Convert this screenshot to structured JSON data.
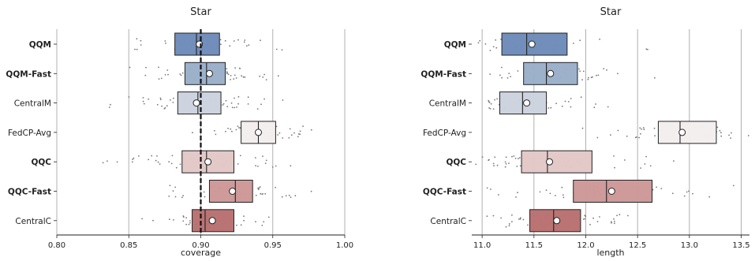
{
  "chart_data": [
    {
      "type": "box",
      "title": "Star",
      "xlabel": "coverage",
      "xlim": [
        0.8,
        1.0
      ],
      "xticks": [
        "0.80",
        "0.85",
        "0.90",
        "0.95",
        "1.00"
      ],
      "xtick_values": [
        0.8,
        0.85,
        0.9,
        0.95,
        1.0
      ],
      "grid": "vertical",
      "reference_line": {
        "value": 0.9,
        "style": "dashed"
      },
      "categories": [
        {
          "label": "QQM",
          "bold": true,
          "q1": 0.882,
          "median": 0.897,
          "q3": 0.913,
          "mean": 0.899,
          "color": "#6d8ab8"
        },
        {
          "label": "QQM-Fast",
          "bold": true,
          "q1": 0.889,
          "median": 0.904,
          "q3": 0.917,
          "mean": 0.906,
          "color": "#9aaec9"
        },
        {
          "label": "CentralM",
          "bold": false,
          "q1": 0.884,
          "median": 0.898,
          "q3": 0.914,
          "mean": 0.897,
          "color": "#cbd3de"
        },
        {
          "label": "FedCP-Avg",
          "bold": false,
          "q1": 0.928,
          "median": 0.94,
          "q3": 0.952,
          "mean": 0.94,
          "color": "#f4eeee"
        },
        {
          "label": "QQC",
          "bold": true,
          "q1": 0.887,
          "median": 0.904,
          "q3": 0.923,
          "mean": 0.905,
          "color": "#e3c7c7"
        },
        {
          "label": "QQC-Fast",
          "bold": true,
          "q1": 0.906,
          "median": 0.924,
          "q3": 0.936,
          "mean": 0.922,
          "color": "#cd9797"
        },
        {
          "label": "CentralC",
          "bold": false,
          "q1": 0.894,
          "median": 0.903,
          "q3": 0.923,
          "mean": 0.908,
          "color": "#b8706f"
        }
      ]
    },
    {
      "type": "box",
      "title": "Star",
      "xlabel": "length",
      "xlim": [
        10.9,
        13.58
      ],
      "xticks": [
        "11.0",
        "11.5",
        "12.0",
        "12.5",
        "13.0",
        "13.5"
      ],
      "xtick_values": [
        11.0,
        11.5,
        12.0,
        12.5,
        13.0,
        13.5
      ],
      "grid": "vertical",
      "categories": [
        {
          "label": "QQM",
          "bold": true,
          "q1": 11.19,
          "median": 11.43,
          "q3": 11.82,
          "mean": 11.48,
          "color": "#6d8ab8"
        },
        {
          "label": "QQM-Fast",
          "bold": true,
          "q1": 11.4,
          "median": 11.62,
          "q3": 11.92,
          "mean": 11.66,
          "color": "#9aaec9"
        },
        {
          "label": "CentralM",
          "bold": false,
          "q1": 11.17,
          "median": 11.39,
          "q3": 11.62,
          "mean": 11.43,
          "color": "#cbd3de"
        },
        {
          "label": "FedCP-Avg",
          "bold": false,
          "q1": 12.7,
          "median": 12.91,
          "q3": 13.26,
          "mean": 12.93,
          "color": "#f4eeee"
        },
        {
          "label": "QQC",
          "bold": true,
          "q1": 11.38,
          "median": 11.63,
          "q3": 12.06,
          "mean": 11.65,
          "color": "#e3c7c7"
        },
        {
          "label": "QQC-Fast",
          "bold": true,
          "q1": 11.88,
          "median": 12.2,
          "q3": 12.64,
          "mean": 12.25,
          "color": "#cd9797"
        },
        {
          "label": "CentralC",
          "bold": false,
          "q1": 11.46,
          "median": 11.69,
          "q3": 11.95,
          "mean": 11.72,
          "color": "#b8706f"
        }
      ]
    }
  ]
}
